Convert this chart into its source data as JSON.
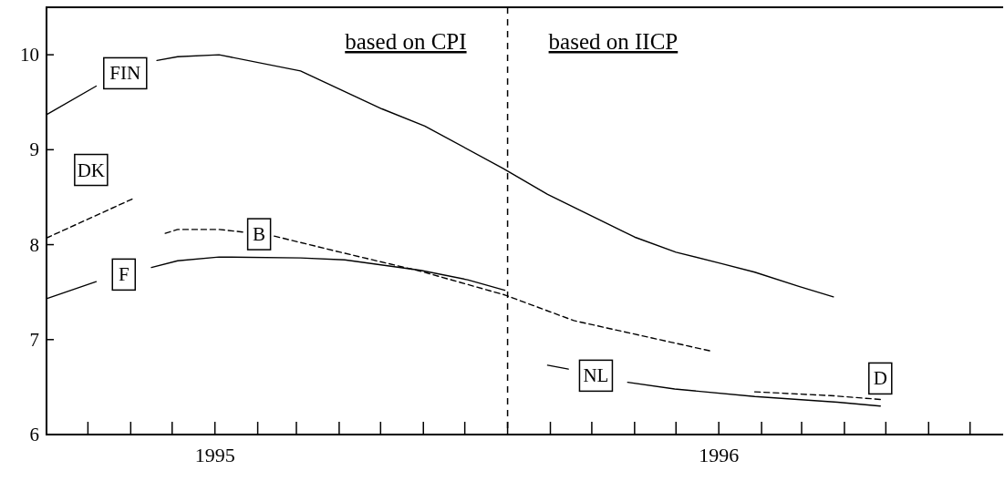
{
  "chart_data": {
    "type": "line",
    "xlim": [
      "1994-09-01",
      "1996-07-25"
    ],
    "ylim": [
      6,
      10.5
    ],
    "xticks": [
      {
        "value": "1994-10",
        "label": null
      },
      {
        "value": "1994-11",
        "label": null
      },
      {
        "value": "1994-12",
        "label": null
      },
      {
        "value": "1995-01",
        "label": "1995"
      },
      {
        "value": "1995-02",
        "label": null
      },
      {
        "value": "1995-03",
        "label": null
      },
      {
        "value": "1995-04",
        "label": null
      },
      {
        "value": "1995-05",
        "label": null
      },
      {
        "value": "1995-06",
        "label": null
      },
      {
        "value": "1995-07",
        "label": null
      },
      {
        "value": "1995-08",
        "label": null
      },
      {
        "value": "1995-09",
        "label": null
      },
      {
        "value": "1995-10",
        "label": null
      },
      {
        "value": "1995-11",
        "label": null
      },
      {
        "value": "1995-12",
        "label": null
      },
      {
        "value": "1996-01",
        "label": "1996"
      },
      {
        "value": "1996-02",
        "label": null
      },
      {
        "value": "1996-03",
        "label": null
      },
      {
        "value": "1996-04",
        "label": null
      },
      {
        "value": "1996-05",
        "label": null
      },
      {
        "value": "1996-06",
        "label": null
      },
      {
        "value": "1996-07",
        "label": null
      }
    ],
    "yticks": [
      6,
      7,
      8,
      9,
      10
    ],
    "grid": false,
    "marker": "none",
    "annotations": [
      "based on CPI",
      "based on IICP"
    ],
    "ref_lines": [
      {
        "axis": "x",
        "value": "1995-08-01",
        "line_style": "dashed",
        "color": "#000000"
      }
    ],
    "series": [
      {
        "name": "FIN",
        "color": "#000000",
        "line_style": "solid",
        "x": [
          "1994-09-01",
          "1994-10-07",
          "1994-10-28",
          "1994-11-20",
          "1994-12-05",
          "1995-01-04",
          "1995-03-04",
          "1995-05-02",
          "1995-06-02",
          "1995-07-29",
          "1995-08-30",
          "1995-11-01",
          "1995-12-01",
          "1996-01-03",
          "1996-01-27",
          "1996-02-28",
          "1996-03-24"
        ],
        "values": [
          9.37,
          9.67,
          null,
          9.94,
          9.98,
          10.0,
          9.83,
          9.43,
          9.25,
          8.8,
          8.53,
          8.08,
          7.92,
          7.8,
          7.71,
          7.56,
          7.45
        ]
      },
      {
        "name": "DK",
        "color": "#000000",
        "line_style": "dashed",
        "x": [
          "1994-09-01",
          "1994-11-02"
        ],
        "values": [
          8.07,
          8.48
        ]
      },
      {
        "name": "B",
        "color": "#000000",
        "line_style": "dashed",
        "x": [
          "1994-11-26",
          "1994-12-05",
          "1995-01-04",
          "1995-01-23",
          "1995-02-02",
          "1995-02-13",
          "1995-04-02",
          "1995-05-30",
          "1995-07-30",
          "1995-09-18",
          "1995-12-26"
        ],
        "values": [
          8.12,
          8.16,
          8.16,
          8.13,
          null,
          8.09,
          7.92,
          7.72,
          7.47,
          7.2,
          6.88
        ]
      },
      {
        "name": "F",
        "color": "#000000",
        "line_style": "solid",
        "x": [
          "1994-09-01",
          "1994-10-07",
          "1994-10-27",
          "1994-11-16",
          "1994-12-05",
          "1995-01-04",
          "1995-03-04",
          "1995-04-05",
          "1995-05-30",
          "1995-07-03",
          "1995-07-30"
        ],
        "values": [
          7.43,
          7.61,
          null,
          7.76,
          7.83,
          7.87,
          7.86,
          7.84,
          7.73,
          7.63,
          7.52
        ]
      },
      {
        "name": "NL",
        "color": "#000000",
        "line_style": "solid",
        "x": [
          "1995-08-30",
          "1995-09-14",
          "1995-10-04",
          "1995-10-27",
          "1995-11-30",
          "1996-01-27",
          "1996-03-27",
          "1996-04-27"
        ],
        "values": [
          6.73,
          6.69,
          null,
          6.55,
          6.48,
          6.4,
          6.34,
          6.3
        ]
      },
      {
        "name": "D",
        "color": "#000000",
        "line_style": "dashed",
        "x": [
          "1996-01-27",
          "1996-03-22",
          "1996-04-27"
        ],
        "values": [
          6.45,
          6.41,
          6.37
        ]
      }
    ]
  }
}
